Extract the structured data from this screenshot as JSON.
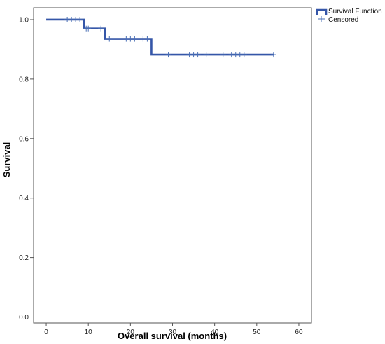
{
  "chart_data": {
    "type": "line",
    "title": "",
    "xlabel": "Overall survival (months)",
    "ylabel": "Survival",
    "xlim": [
      -3,
      63
    ],
    "ylim": [
      -0.02,
      1.04
    ],
    "x_ticks": [
      0,
      10,
      20,
      30,
      40,
      50,
      60
    ],
    "y_ticks": [
      0.0,
      0.2,
      0.4,
      0.6,
      0.8,
      1.0
    ],
    "x_tick_labels": [
      "0",
      "10",
      "20",
      "30",
      "40",
      "50",
      "60"
    ],
    "y_tick_labels": [
      "0.0",
      "0.2",
      "0.4",
      "0.6",
      "0.8",
      "1.0"
    ],
    "grid": false,
    "legend_position": "top-right",
    "colors": {
      "survival": "#3556a8",
      "censored": "#4a6fb5"
    },
    "series": [
      {
        "name": "Survival Function",
        "kind": "step",
        "x": [
          0,
          9,
          14,
          25,
          54
        ],
        "y": [
          1.0,
          0.97,
          0.935,
          0.882,
          0.882
        ]
      },
      {
        "name": "Censored",
        "kind": "marker",
        "points": [
          [
            5,
            1.0
          ],
          [
            6,
            1.0
          ],
          [
            7,
            1.0
          ],
          [
            8,
            1.0
          ],
          [
            9.5,
            0.97
          ],
          [
            10,
            0.97
          ],
          [
            13,
            0.97
          ],
          [
            15,
            0.935
          ],
          [
            19,
            0.935
          ],
          [
            20,
            0.935
          ],
          [
            21,
            0.935
          ],
          [
            23,
            0.935
          ],
          [
            24,
            0.935
          ],
          [
            29,
            0.882
          ],
          [
            34,
            0.882
          ],
          [
            35,
            0.882
          ],
          [
            36,
            0.882
          ],
          [
            38,
            0.882
          ],
          [
            42,
            0.882
          ],
          [
            44,
            0.882
          ],
          [
            45,
            0.882
          ],
          [
            46,
            0.882
          ],
          [
            47,
            0.882
          ],
          [
            54,
            0.882
          ]
        ]
      }
    ]
  }
}
